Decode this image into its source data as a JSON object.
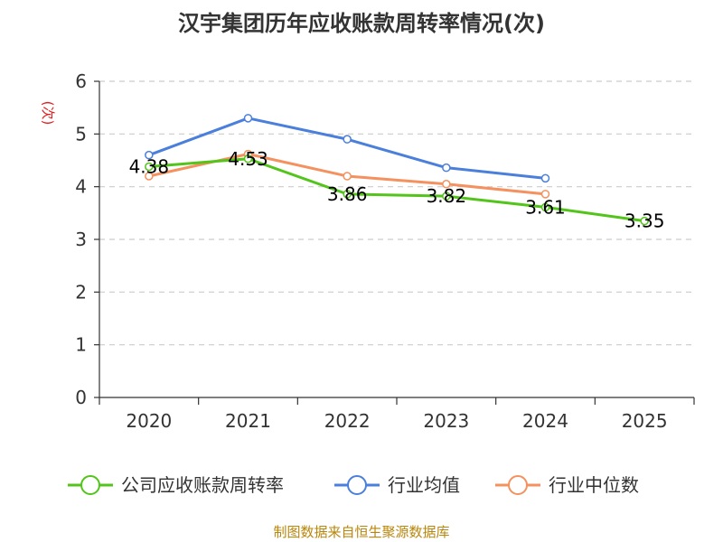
{
  "chart_data": {
    "type": "line",
    "title": "汉宇集团历年应收账款周转率情况(次)",
    "ylabel": "(次)",
    "xlabel": "",
    "categories": [
      "2020",
      "2021",
      "2022",
      "2023",
      "2024",
      "2025"
    ],
    "yticks": [
      "0",
      "1",
      "2",
      "3",
      "4",
      "5",
      "6"
    ],
    "ylim": [
      0,
      6
    ],
    "grid": true,
    "legend_position": "bottom",
    "series": [
      {
        "name": "公司应收账款周转率",
        "color": "#52c41a",
        "values": [
          4.38,
          4.53,
          3.86,
          3.82,
          3.61,
          3.35
        ],
        "labels": [
          "4.38",
          "4.53",
          "3.86",
          "3.82",
          "3.61",
          "3.35"
        ]
      },
      {
        "name": "行业均值",
        "color": "#4a7fdb",
        "values": [
          4.6,
          5.3,
          4.9,
          4.36,
          4.16,
          null
        ]
      },
      {
        "name": "行业中位数",
        "color": "#f4915f",
        "values": [
          4.2,
          4.62,
          4.2,
          4.05,
          3.86,
          null
        ]
      }
    ],
    "source": "制图数据来自恒生聚源数据库"
  }
}
